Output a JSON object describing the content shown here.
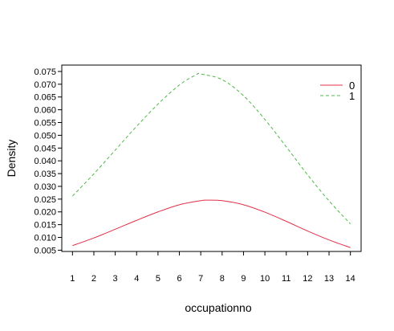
{
  "chart_data": {
    "type": "line",
    "title": "",
    "xlabel": "occupationno",
    "ylabel": "Density",
    "xlim": [
      0.5,
      14.5
    ],
    "ylim": [
      0.0045,
      0.0775
    ],
    "x_ticks": [
      1,
      2,
      3,
      4,
      5,
      6,
      7,
      8,
      9,
      10,
      11,
      12,
      13,
      14
    ],
    "y_ticks": [
      0.005,
      0.01,
      0.015,
      0.02,
      0.025,
      0.03,
      0.035,
      0.04,
      0.045,
      0.05,
      0.055,
      0.06,
      0.065,
      0.07,
      0.075
    ],
    "y_tick_labels": [
      "0.005",
      "0.010",
      "0.015",
      "0.020",
      "0.025",
      "0.030",
      "0.035",
      "0.040",
      "0.045",
      "0.050",
      "0.055",
      "0.060",
      "0.065",
      "0.070",
      "0.075"
    ],
    "grid": false,
    "legend_position": "top-right",
    "series": [
      {
        "name": "0",
        "color": "#e2304a",
        "dash": "solid",
        "x": [
          1,
          2,
          3,
          4,
          5,
          6,
          7,
          7.3,
          8,
          9,
          10,
          11,
          12,
          13,
          14
        ],
        "y": [
          0.0068,
          0.0098,
          0.0132,
          0.0167,
          0.02,
          0.0228,
          0.0244,
          0.0246,
          0.0244,
          0.0228,
          0.0199,
          0.0163,
          0.0125,
          0.009,
          0.006
        ]
      },
      {
        "name": "1",
        "color": "#4fb848",
        "dash": "dashed",
        "x": [
          1,
          2,
          3,
          4,
          5,
          6,
          6.8,
          7,
          8,
          9,
          10,
          11,
          12,
          13,
          14
        ],
        "y": [
          0.0262,
          0.0349,
          0.0442,
          0.0535,
          0.0622,
          0.0697,
          0.0738,
          0.074,
          0.0718,
          0.0655,
          0.0562,
          0.0455,
          0.0345,
          0.0243,
          0.0153
        ]
      }
    ]
  }
}
